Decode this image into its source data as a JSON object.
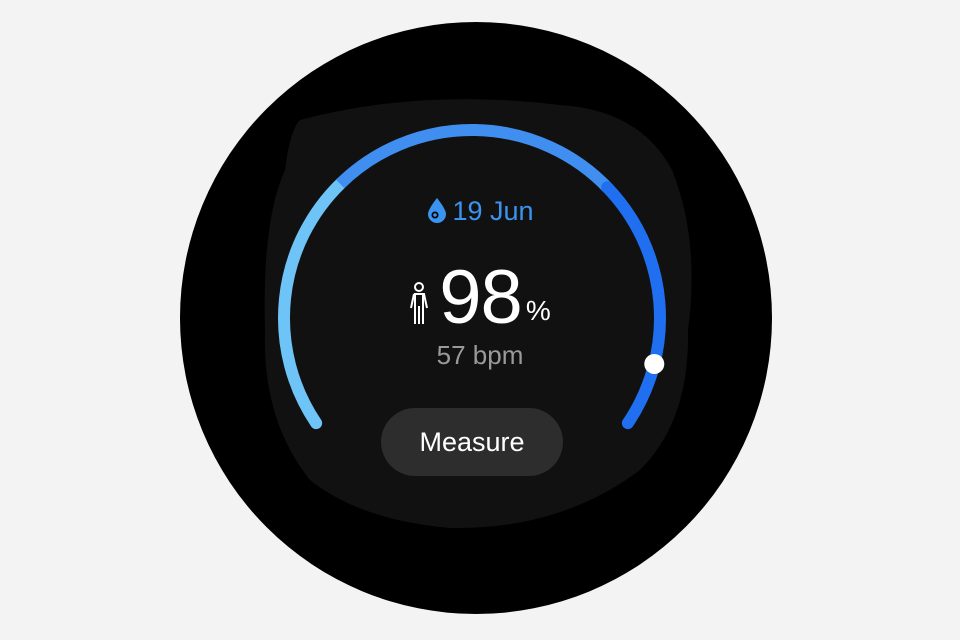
{
  "colors": {
    "arc_light": "#6ec3f7",
    "arc_mid": "#3f8ef0",
    "arc_dark": "#1f6ff0",
    "accent": "#3b93f0",
    "button_bg": "#2d2d2d"
  },
  "header": {
    "icon": "blood-drop-icon",
    "date": "19 Jun"
  },
  "reading": {
    "icon": "person-icon",
    "value": "98",
    "unit": "%",
    "heart_rate": "57 bpm"
  },
  "gauge": {
    "marker_level_percent": 92
  },
  "actions": {
    "measure_label": "Measure"
  }
}
